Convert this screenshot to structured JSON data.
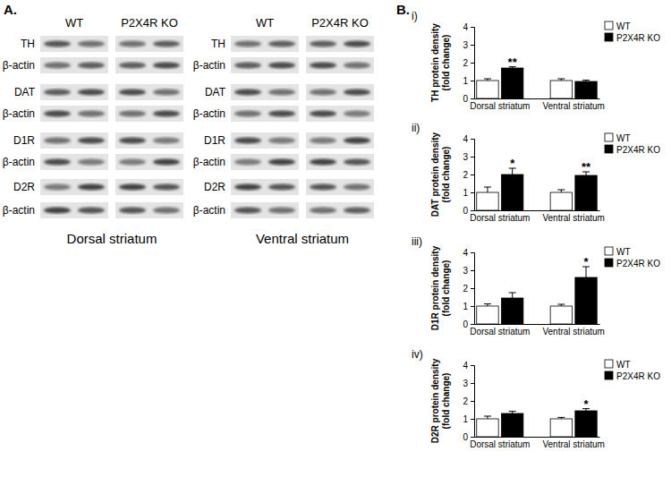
{
  "panel_labels": [
    "A.",
    "B."
  ],
  "blots": {
    "lane_groups": [
      "WT",
      "P2X4R KO"
    ],
    "panels": [
      {
        "title": "Dorsal striatum",
        "rows": [
          "TH",
          "β-actin",
          "DAT",
          "β-actin",
          "D1R",
          "β-actin",
          "D2R",
          "β-actin"
        ]
      },
      {
        "title": "Ventral striatum",
        "rows": [
          "TH",
          "β-actin",
          "DAT",
          "β-actin",
          "D1R",
          "β-actin",
          "D2R",
          "β-actin"
        ]
      }
    ]
  },
  "chart_data": [
    {
      "type": "bar",
      "title": "i)",
      "ylabel": [
        "TH protein density",
        "(fold change)"
      ],
      "categories": [
        "Dorsal striatum",
        "Ventral striatum"
      ],
      "series": [
        {
          "name": "WT",
          "color": "#ffffff",
          "values": [
            1.0,
            1.0
          ],
          "errors": [
            0.1,
            0.1
          ]
        },
        {
          "name": "P2X4R KO",
          "color": "#000000",
          "values": [
            1.7,
            0.95
          ],
          "errors": [
            0.07,
            0.07
          ]
        }
      ],
      "ylim": [
        0,
        4
      ],
      "yticks": [
        0,
        1,
        2,
        3,
        4
      ],
      "legend": "upper right",
      "annotations": [
        {
          "text": "**",
          "series": "P2X4R KO",
          "category": "Dorsal striatum"
        }
      ]
    },
    {
      "type": "bar",
      "title": "ii)",
      "ylabel": [
        "DAT protein density",
        "(fold change)"
      ],
      "categories": [
        "Dorsal striatum",
        "Ventral striatum"
      ],
      "series": [
        {
          "name": "WT",
          "color": "#ffffff",
          "values": [
            1.0,
            1.0
          ],
          "errors": [
            0.3,
            0.15
          ]
        },
        {
          "name": "P2X4R KO",
          "color": "#000000",
          "values": [
            2.0,
            1.95
          ],
          "errors": [
            0.35,
            0.2
          ]
        }
      ],
      "ylim": [
        0,
        4
      ],
      "yticks": [
        0,
        1,
        2,
        3,
        4
      ],
      "legend": "upper right",
      "annotations": [
        {
          "text": "*",
          "series": "P2X4R KO",
          "category": "Dorsal striatum"
        },
        {
          "text": "**",
          "series": "P2X4R KO",
          "category": "Ventral striatum"
        }
      ]
    },
    {
      "type": "bar",
      "title": "iii)",
      "ylabel": [
        "D1R protein density",
        "(fold change)"
      ],
      "categories": [
        "Dorsal striatum",
        "Ventral striatum"
      ],
      "series": [
        {
          "name": "WT",
          "color": "#ffffff",
          "values": [
            1.0,
            1.0
          ],
          "errors": [
            0.12,
            0.1
          ]
        },
        {
          "name": "P2X4R KO",
          "color": "#000000",
          "values": [
            1.45,
            2.6
          ],
          "errors": [
            0.3,
            0.6
          ]
        }
      ],
      "ylim": [
        0,
        4
      ],
      "yticks": [
        0,
        1,
        2,
        3,
        4
      ],
      "legend": "upper right",
      "annotations": [
        {
          "text": "*",
          "series": "P2X4R KO",
          "category": "Ventral striatum"
        }
      ]
    },
    {
      "type": "bar",
      "title": "iv)",
      "ylabel": [
        "D2R protein density",
        "(fold change)"
      ],
      "categories": [
        "Dorsal striatum",
        "Ventral striatum"
      ],
      "series": [
        {
          "name": "WT",
          "color": "#ffffff",
          "values": [
            1.0,
            1.0
          ],
          "errors": [
            0.15,
            0.08
          ]
        },
        {
          "name": "P2X4R KO",
          "color": "#000000",
          "values": [
            1.3,
            1.45
          ],
          "errors": [
            0.12,
            0.12
          ]
        }
      ],
      "ylim": [
        0,
        4
      ],
      "yticks": [
        0,
        1,
        2,
        3,
        4
      ],
      "legend": "upper right",
      "annotations": [
        {
          "text": "*",
          "series": "P2X4R KO",
          "category": "Ventral striatum"
        }
      ]
    }
  ]
}
